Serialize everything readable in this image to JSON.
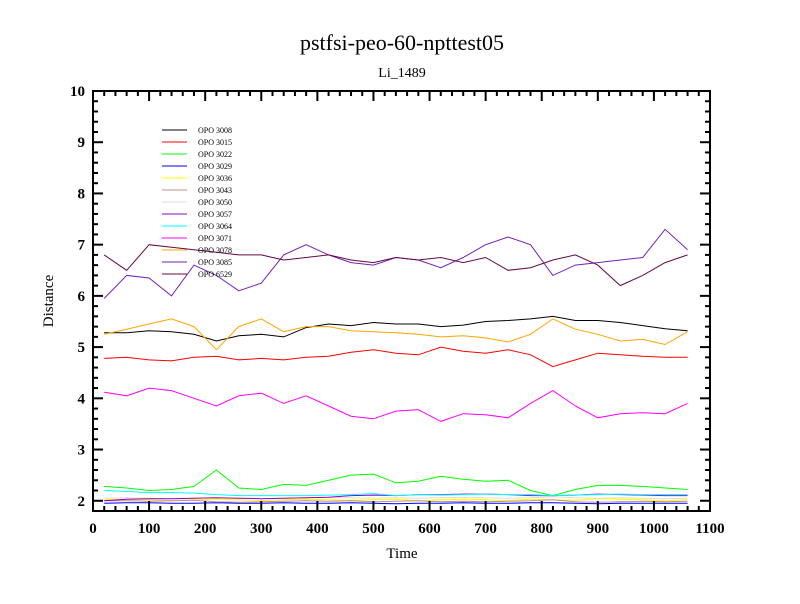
{
  "chart_data": {
    "type": "line",
    "title": "pstfsi-peo-60-npttest05",
    "subtitle": "Li_1489",
    "xlabel": "Time",
    "ylabel": "Distance",
    "xlim": [
      0,
      1100
    ],
    "ylim": [
      1.8,
      10
    ],
    "x_ticks": [
      "0",
      "100",
      "200",
      "300",
      "400",
      "500",
      "600",
      "700",
      "800",
      "900",
      "1000",
      "1100"
    ],
    "y_ticks": [
      "2",
      "3",
      "4",
      "5",
      "6",
      "7",
      "8",
      "9",
      "10"
    ],
    "legend_position": "top-left",
    "grid": false,
    "x": [
      20,
      60,
      100,
      140,
      180,
      220,
      260,
      300,
      340,
      380,
      420,
      460,
      500,
      540,
      580,
      620,
      660,
      700,
      740,
      780,
      820,
      860,
      900,
      940,
      980,
      1020,
      1060
    ],
    "series": [
      {
        "name": "OPO 3008",
        "color": "#000000",
        "values": [
          5.28,
          5.28,
          5.32,
          5.3,
          5.25,
          5.12,
          5.22,
          5.25,
          5.2,
          5.38,
          5.45,
          5.42,
          5.48,
          5.45,
          5.45,
          5.4,
          5.43,
          5.5,
          5.52,
          5.55,
          5.6,
          5.52,
          5.52,
          5.48,
          5.42,
          5.36,
          5.32
        ]
      },
      {
        "name": "OPO 3015",
        "color": "#ff0000",
        "values": [
          4.78,
          4.8,
          4.75,
          4.73,
          4.8,
          4.82,
          4.75,
          4.78,
          4.75,
          4.8,
          4.82,
          4.9,
          4.95,
          4.88,
          4.85,
          5.0,
          4.92,
          4.88,
          4.95,
          4.85,
          4.62,
          4.75,
          4.88,
          4.85,
          4.82,
          4.8,
          4.8
        ]
      },
      {
        "name": "OPO 3022",
        "color": "#00ff00",
        "values": [
          2.28,
          2.25,
          2.2,
          2.22,
          2.28,
          2.6,
          2.25,
          2.22,
          2.32,
          2.3,
          2.4,
          2.5,
          2.52,
          2.35,
          2.38,
          2.48,
          2.42,
          2.38,
          2.4,
          2.2,
          2.1,
          2.22,
          2.3,
          2.3,
          2.28,
          2.25,
          2.22
        ]
      },
      {
        "name": "OPO 3029",
        "color": "#0000ff",
        "values": [
          1.95,
          1.96,
          1.96,
          1.95,
          1.95,
          1.96,
          1.95,
          1.95,
          1.96,
          1.95,
          1.95,
          1.96,
          1.95,
          1.94,
          1.95,
          1.95,
          1.96,
          1.95,
          1.95,
          1.96,
          1.96,
          1.95,
          1.94,
          1.95,
          1.95,
          1.95,
          1.95
        ]
      },
      {
        "name": "OPO 3036",
        "color": "#ffff00",
        "values": [
          2.02,
          2.03,
          2.02,
          2.0,
          2.02,
          2.03,
          2.02,
          2.0,
          2.02,
          2.03,
          2.02,
          2.01,
          2.02,
          2.03,
          2.0,
          2.02,
          2.03,
          2.02,
          2.0,
          2.03,
          2.02,
          2.01,
          2.04,
          2.03,
          2.02,
          2.0,
          2.02
        ]
      },
      {
        "name": "OPO 3043",
        "color": "#bc8f8f",
        "values": [
          2.0,
          2.0,
          1.99,
          2.0,
          2.01,
          1.98,
          1.97,
          1.98,
          1.99,
          2.0,
          1.99,
          2.0,
          1.98,
          1.99,
          2.0,
          1.98,
          1.99,
          1.98,
          1.99,
          2.0,
          2.02,
          1.98,
          1.97,
          1.98,
          1.99,
          1.98,
          1.99
        ]
      },
      {
        "name": "OPO 3050",
        "color": "#dcdcdc",
        "values": [
          2.05,
          2.06,
          2.05,
          2.04,
          2.05,
          2.06,
          2.05,
          2.04,
          2.05,
          2.06,
          2.07,
          2.06,
          2.05,
          2.06,
          2.05,
          2.06,
          2.07,
          2.06,
          2.05,
          2.06,
          2.08,
          2.06,
          2.05,
          2.06,
          2.05,
          2.04,
          2.05
        ]
      },
      {
        "name": "OPO 3057",
        "color": "#9400d3",
        "values": [
          2.0,
          2.03,
          2.04,
          2.04,
          2.05,
          2.06,
          2.05,
          2.04,
          2.05,
          2.06,
          2.07,
          2.1,
          2.11,
          2.1,
          2.12,
          2.12,
          2.13,
          2.13,
          2.12,
          2.1,
          2.1,
          2.11,
          2.13,
          2.12,
          2.11,
          2.1,
          2.1
        ]
      },
      {
        "name": "OPO 3064",
        "color": "#00ffff",
        "values": [
          2.2,
          2.18,
          2.16,
          2.16,
          2.15,
          2.12,
          2.1,
          2.1,
          2.1,
          2.1,
          2.11,
          2.12,
          2.14,
          2.1,
          2.12,
          2.11,
          2.12,
          2.13,
          2.12,
          2.12,
          2.1,
          2.11,
          2.12,
          2.13,
          2.12,
          2.12,
          2.12
        ]
      },
      {
        "name": "OPO 3071",
        "color": "#ff00ff",
        "values": [
          4.12,
          4.05,
          4.2,
          4.15,
          4.0,
          3.85,
          4.05,
          4.1,
          3.9,
          4.05,
          3.85,
          3.65,
          3.6,
          3.75,
          3.78,
          3.55,
          3.7,
          3.68,
          3.62,
          3.9,
          4.15,
          3.85,
          3.62,
          3.7,
          3.72,
          3.7,
          3.9
        ]
      },
      {
        "name": "OPO 3078",
        "color": "#ffa500",
        "values": [
          5.25,
          5.35,
          5.45,
          5.55,
          5.4,
          4.95,
          5.4,
          5.55,
          5.3,
          5.4,
          5.4,
          5.32,
          5.3,
          5.28,
          5.25,
          5.2,
          5.22,
          5.18,
          5.1,
          5.25,
          5.55,
          5.35,
          5.25,
          5.12,
          5.15,
          5.05,
          5.3
        ]
      },
      {
        "name": "OPO 3085",
        "color": "#7221bc",
        "values": [
          5.95,
          6.4,
          6.35,
          6.0,
          6.6,
          6.4,
          6.1,
          6.25,
          6.8,
          7.0,
          6.8,
          6.65,
          6.6,
          6.75,
          6.7,
          6.55,
          6.75,
          7.0,
          7.15,
          7.0,
          6.4,
          6.6,
          6.65,
          6.7,
          6.75,
          7.3,
          6.9
        ]
      },
      {
        "name": "OPO 6529",
        "color": "#670748",
        "values": [
          6.8,
          6.5,
          7.0,
          6.95,
          6.9,
          6.85,
          6.8,
          6.8,
          6.7,
          6.75,
          6.8,
          6.7,
          6.65,
          6.75,
          6.7,
          6.75,
          6.65,
          6.75,
          6.5,
          6.55,
          6.7,
          6.8,
          6.6,
          6.2,
          6.4,
          6.65,
          6.8
        ]
      }
    ]
  }
}
